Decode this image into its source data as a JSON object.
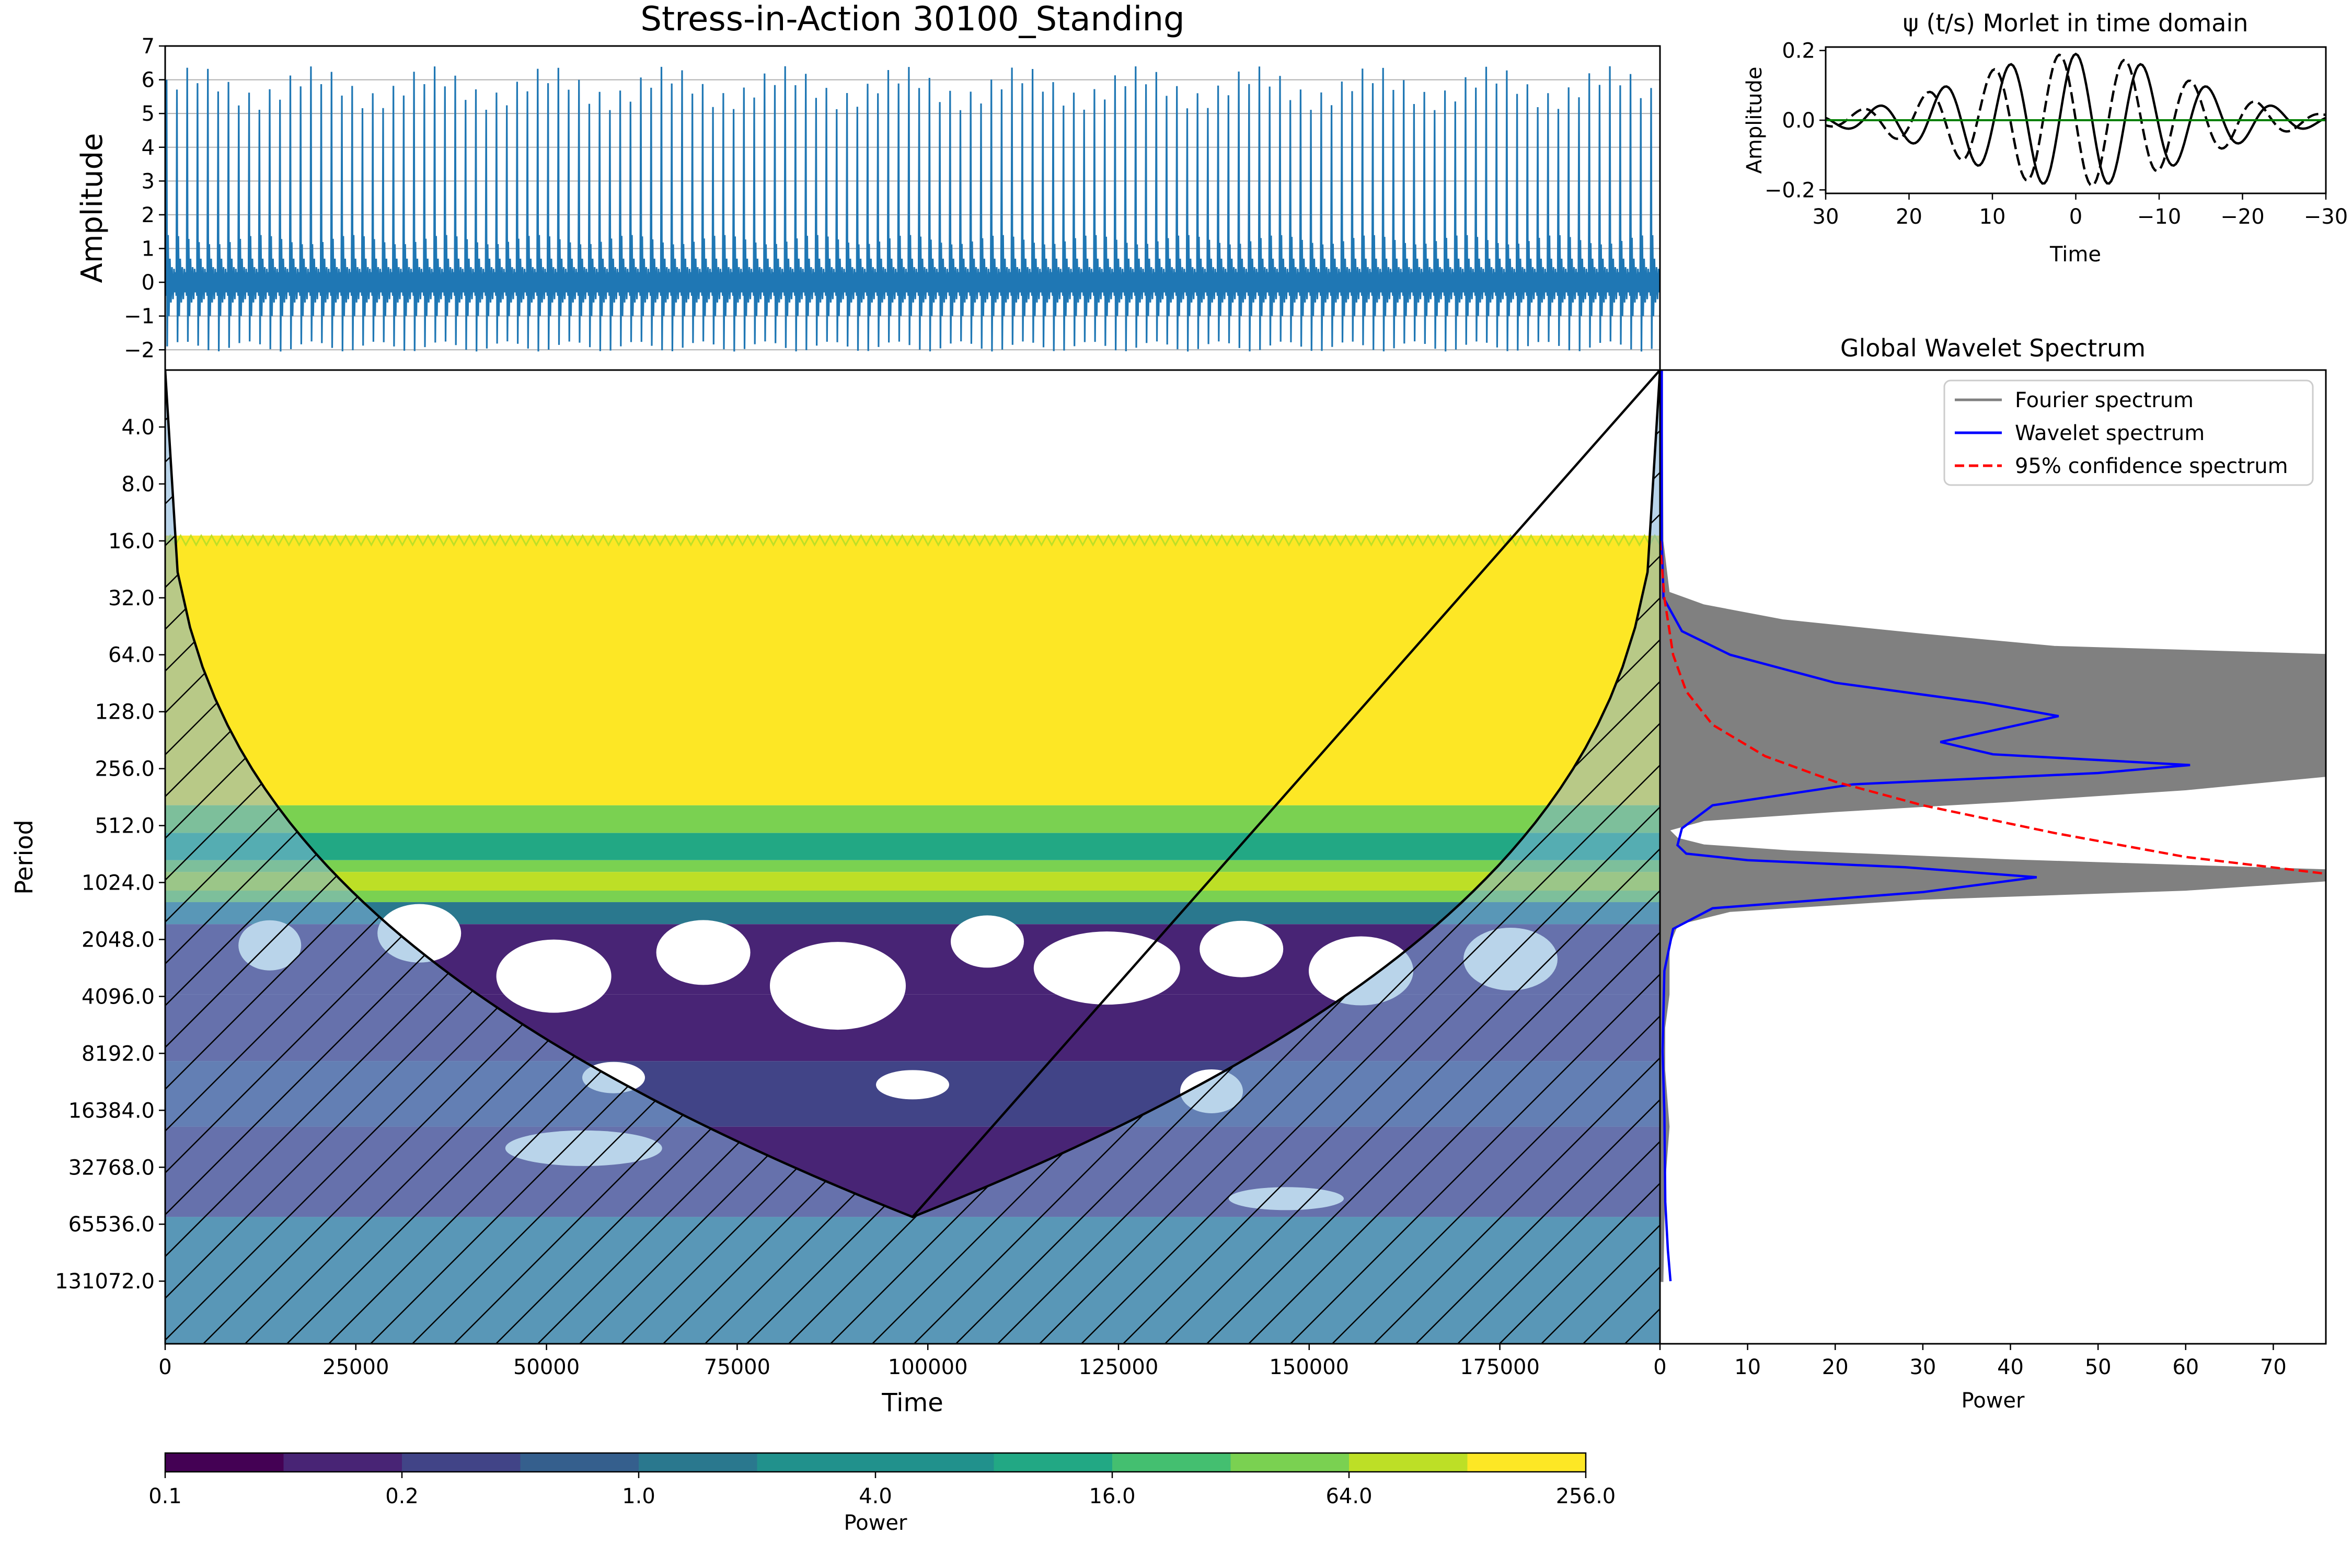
{
  "chart_data": [
    {
      "type": "line",
      "title": "Stress-in-Action 30100_Standing",
      "xlabel": "",
      "ylabel": "Amplitude",
      "xlim": [
        0,
        196000
      ],
      "ylim": [
        -2.6,
        7
      ],
      "yticks": [
        7,
        6,
        5,
        4,
        3,
        2,
        1,
        0,
        -1,
        -2
      ],
      "ytick_labels": [
        "7",
        "6",
        "5",
        "4",
        "3",
        "2",
        "1",
        "0",
        "−1",
        "−2"
      ],
      "grid": true,
      "color": "#1f77b4",
      "signal": {
        "cycles": 145,
        "peak_level": 6.0,
        "peak_variation": 0.4,
        "secondary_level": 1.4,
        "trough_level": -1.9,
        "baseline_band": [
          -0.5,
          0.5
        ]
      }
    },
    {
      "type": "line",
      "title": "ψ (t/s) Morlet in time domain",
      "xlabel": "Time",
      "ylabel": "Amplitude",
      "xlim": [
        30,
        -30
      ],
      "ylim": [
        -0.21,
        0.21
      ],
      "xticks": [
        30,
        20,
        10,
        0,
        -10,
        -20,
        -30
      ],
      "xtick_labels": [
        "30",
        "20",
        "10",
        "0",
        "−10",
        "−20",
        "−30"
      ],
      "yticks": [
        0.2,
        0,
        -0.2
      ],
      "ytick_labels": [
        "0.2",
        "0.0",
        "−0.2"
      ],
      "series": [
        {
          "role": "real",
          "color": "#000000",
          "style": "solid",
          "amplitude": 0.19,
          "frequency_rad": 0.8,
          "width": 13.5
        },
        {
          "role": "imag",
          "color": "#000000",
          "style": "dashed",
          "amplitude": 0.19,
          "frequency_rad": 0.8,
          "width": 13.5
        },
        {
          "role": "zero",
          "color": "#008000",
          "style": "solid",
          "value": 0
        }
      ]
    },
    {
      "type": "heatmap",
      "title": "",
      "xlabel": "Time",
      "ylabel": "Period",
      "xlim": [
        0,
        196000
      ],
      "xticks": [
        0,
        25000,
        50000,
        75000,
        100000,
        125000,
        150000,
        175000
      ],
      "xtick_labels": [
        "0",
        "25000",
        "50000",
        "75000",
        "100000",
        "125000",
        "150000",
        "175000"
      ],
      "ylog2_range": [
        1,
        18.1
      ],
      "yticks": [
        4,
        8,
        16,
        32,
        64,
        128,
        256,
        512,
        1024,
        2048,
        4096,
        8192,
        16384,
        32768,
        65536,
        131072
      ],
      "ytick_labels": [
        "4.0",
        "8.0",
        "16.0",
        "32.0",
        "64.0",
        "128.0",
        "256.0",
        "512.0",
        "1024.0",
        "2048.0",
        "4096.0",
        "8192.0",
        "16384.0",
        "32768.0",
        "65536.0",
        "131072.0"
      ],
      "bands": [
        {
          "from_period": 15,
          "to_period": 400,
          "power": 256
        },
        {
          "from_period": 400,
          "to_period": 560,
          "power": 16
        },
        {
          "from_period": 560,
          "to_period": 780,
          "power": 4
        },
        {
          "from_period": 780,
          "to_period": 900,
          "power": 16
        },
        {
          "from_period": 900,
          "to_period": 1130,
          "power": 64
        },
        {
          "from_period": 1130,
          "to_period": 1300,
          "power": 16
        },
        {
          "from_period": 1300,
          "to_period": 1700,
          "power": 1
        },
        {
          "from_period": 1700,
          "to_period": 4000,
          "power": 0.2
        },
        {
          "from_period": 4000,
          "to_period": 9000,
          "power": 0.3
        },
        {
          "from_period": 9000,
          "to_period": 20000,
          "power": 0.5
        },
        {
          "from_period": 20000,
          "to_period": 60000,
          "power": 0.2
        },
        {
          "from_period": 60000,
          "to_period": 300000,
          "power": 1
        }
      ],
      "cone_of_influence": {
        "apex_time": 98000,
        "apex_period": 60000
      },
      "coi_hatch_color": "#7fb0d8",
      "annotations": []
    },
    {
      "type": "line",
      "title": "Global Wavelet Spectrum",
      "xlabel": "Power",
      "ylabel": "",
      "xlim": [
        0,
        76
      ],
      "xticks": [
        0,
        10,
        20,
        30,
        40,
        50,
        60,
        70
      ],
      "xtick_labels": [
        "0",
        "10",
        "20",
        "30",
        "40",
        "50",
        "60",
        "70"
      ],
      "legend": "top-right",
      "series": [
        {
          "name": "Fourier spectrum",
          "color": "#808080",
          "style": "solid",
          "points": [
            [
              0.2,
              2
            ],
            [
              0.3,
              16
            ],
            [
              1,
              30
            ],
            [
              5,
              35
            ],
            [
              14,
              42
            ],
            [
              30,
              50
            ],
            [
              45,
              58
            ],
            [
              76,
              64
            ],
            [
              76,
              90
            ],
            [
              76,
              140
            ],
            [
              76,
              200
            ],
            [
              76,
              280
            ],
            [
              60,
              330
            ],
            [
              40,
              380
            ],
            [
              20,
              430
            ],
            [
              5,
              480
            ],
            [
              1,
              540
            ],
            [
              2,
              600
            ],
            [
              5,
              650
            ],
            [
              15,
              700
            ],
            [
              40,
              780
            ],
            [
              76,
              880
            ],
            [
              76,
              1000
            ],
            [
              60,
              1120
            ],
            [
              30,
              1250
            ],
            [
              8,
              1450
            ],
            [
              2,
              1700
            ],
            [
              1,
              2200
            ],
            [
              1,
              4000
            ],
            [
              0.5,
              6000
            ],
            [
              0.5,
              10000
            ],
            [
              1,
              20000
            ],
            [
              0.5,
              40000
            ],
            [
              0.3,
              131072
            ]
          ]
        },
        {
          "name": "Wavelet spectrum",
          "color": "#0000ff",
          "style": "solid",
          "points": [
            [
              0.2,
              2
            ],
            [
              0.2,
              16
            ],
            [
              0.4,
              32
            ],
            [
              2.5,
              48
            ],
            [
              8,
              64
            ],
            [
              20,
              90
            ],
            [
              37,
              115
            ],
            [
              45.5,
              135
            ],
            [
              32,
              185
            ],
            [
              38,
              215
            ],
            [
              60.5,
              245
            ],
            [
              50,
              270
            ],
            [
              22,
              310
            ],
            [
              6,
              400
            ],
            [
              2.5,
              530
            ],
            [
              2,
              650
            ],
            [
              3,
              720
            ],
            [
              10,
              780
            ],
            [
              28,
              850
            ],
            [
              43,
              960
            ],
            [
              30,
              1150
            ],
            [
              6,
              1400
            ],
            [
              1.5,
              1800
            ],
            [
              0.5,
              3000
            ],
            [
              0.3,
              8000
            ],
            [
              0.5,
              17000
            ],
            [
              0.6,
              50000
            ],
            [
              0.9,
              90000
            ],
            [
              1.2,
              131072
            ]
          ]
        },
        {
          "name": "95% confidence spectrum",
          "color": "#ff0000",
          "style": "dashed",
          "points": [
            [
              0,
              16
            ],
            [
              0.5,
              32
            ],
            [
              1.5,
              64
            ],
            [
              3,
              100
            ],
            [
              6,
              150
            ],
            [
              12,
              220
            ],
            [
              20,
              300
            ],
            [
              30,
              400
            ],
            [
              45,
              560
            ],
            [
              60,
              750
            ],
            [
              76,
              920
            ]
          ]
        }
      ]
    },
    {
      "type": "heatmap-colorbar",
      "xlabel": "Power",
      "ticks": [
        "0.1",
        "0.2",
        "1.0",
        "4.0",
        "16.0",
        "64.0",
        "256.0"
      ],
      "colors": [
        "#440154",
        "#482475",
        "#414487",
        "#355f8d",
        "#2a788e",
        "#21918c",
        "#22a884",
        "#44bf70",
        "#7ad151",
        "#bddf26",
        "#fde725"
      ]
    }
  ]
}
